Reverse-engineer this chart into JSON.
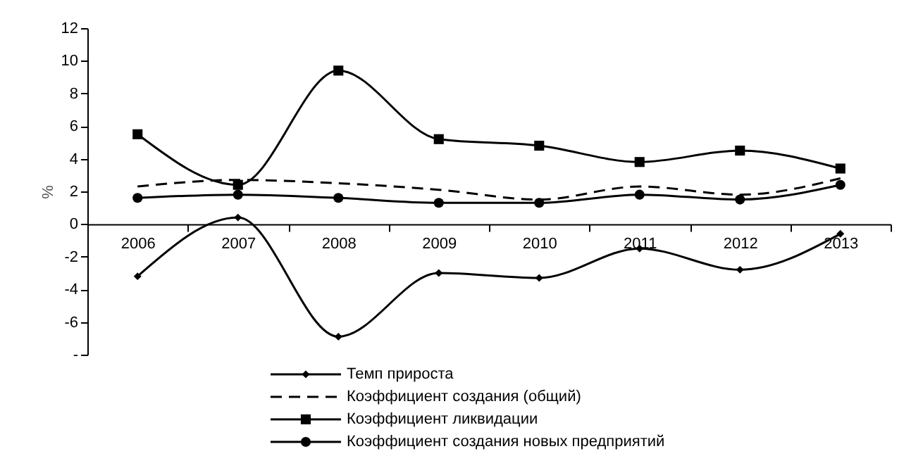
{
  "chart_data": {
    "type": "line",
    "ylabel": "%",
    "categories": [
      "2006",
      "2007",
      "2008",
      "2009",
      "2010",
      "2011",
      "2012",
      "2013"
    ],
    "series": [
      {
        "name": "Темп прироста",
        "color": "#000000",
        "marker": "diamond",
        "line_style": "solid",
        "values": [
          -3.2,
          0.4,
          -6.9,
          -3.0,
          -3.3,
          -1.5,
          -2.8,
          -0.6
        ]
      },
      {
        "name": "Коэффициент создания (общий)",
        "color": "#000000",
        "marker": "none",
        "line_style": "dashed",
        "values": [
          2.3,
          2.7,
          2.5,
          2.1,
          1.5,
          2.3,
          1.8,
          2.8
        ]
      },
      {
        "name": "Коэффициент ликвидации",
        "color": "#000000",
        "marker": "square",
        "line_style": "solid",
        "values": [
          5.5,
          2.4,
          9.4,
          5.2,
          4.8,
          3.8,
          4.5,
          3.4
        ]
      },
      {
        "name": "Коэффициент создания новых предприятий",
        "color": "#000000",
        "marker": "circle",
        "line_style": "solid",
        "values": [
          1.6,
          1.8,
          1.6,
          1.3,
          1.3,
          1.8,
          1.5,
          2.4
        ]
      }
    ],
    "ylim": [
      -8,
      12
    ],
    "yticks": [
      {
        "value": -8,
        "label": "-"
      },
      -6,
      -4,
      -2,
      0,
      2,
      4,
      6,
      8,
      10,
      12
    ],
    "grid": false,
    "legend": "bottom"
  }
}
